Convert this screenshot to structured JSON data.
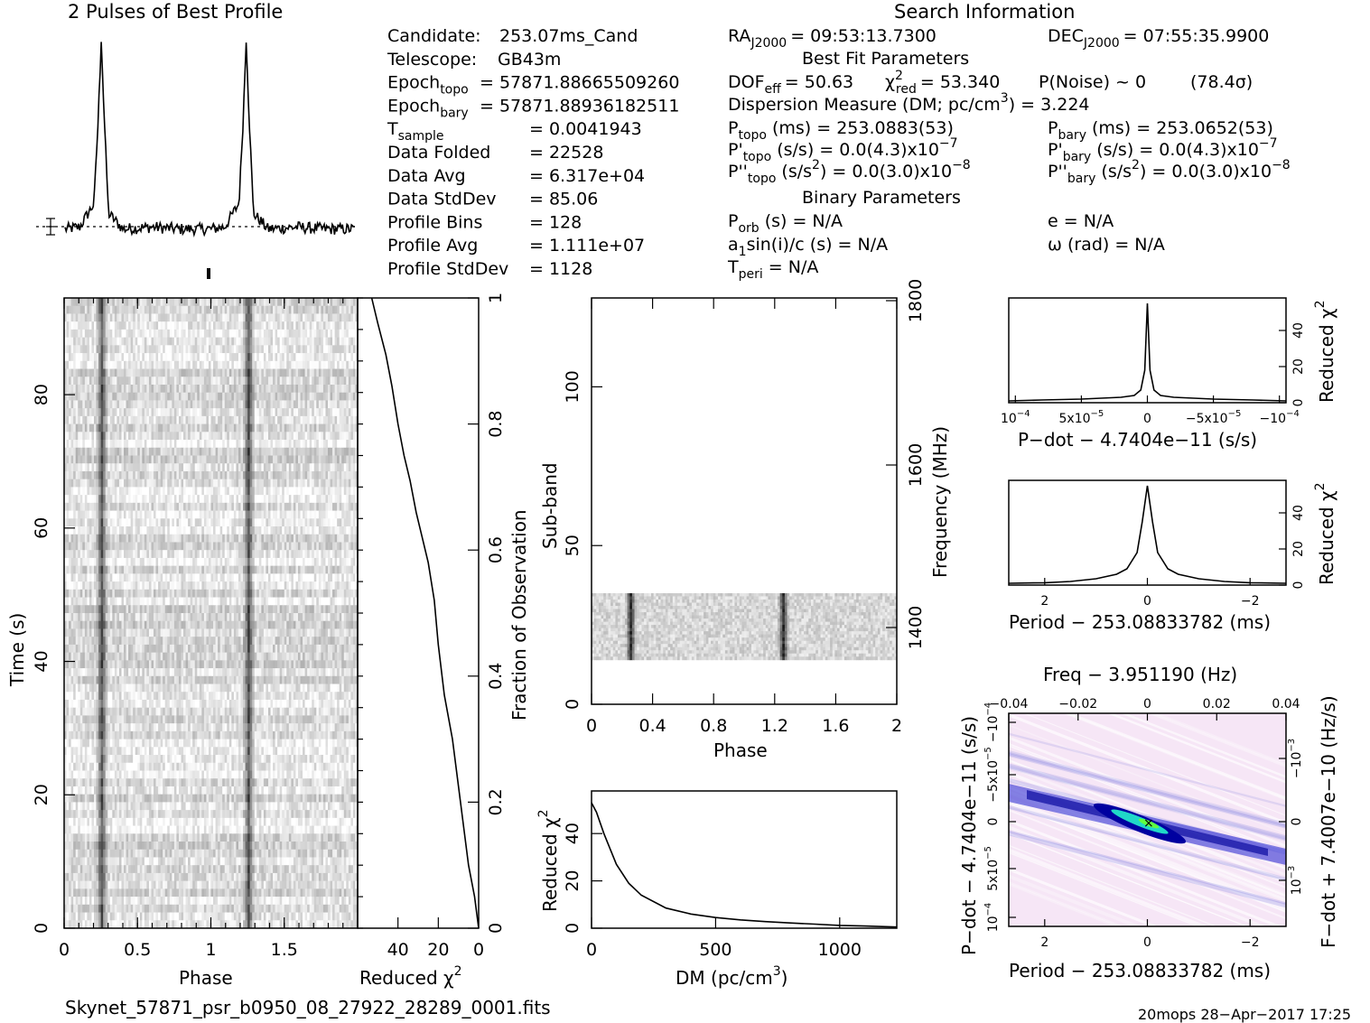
{
  "header": {
    "profile_title": "2 Pulses of Best Profile",
    "search_title": "Search Information"
  },
  "info": {
    "left": [
      {
        "label": "Candidate:",
        "value": "253.07ms_Cand"
      },
      {
        "label": "Telescope:",
        "value": "GB43m"
      },
      {
        "label": "Epoch",
        "sub": "topo",
        "value": "= 57871.88665509260"
      },
      {
        "label": "Epoch",
        "sub": "bary",
        "value": "= 57871.88936182511"
      },
      {
        "label": "T",
        "sub": "sample",
        "value": "= 0.0041943"
      },
      {
        "label": "Data Folded",
        "value": "= 22528"
      },
      {
        "label": "Data Avg",
        "value": "= 6.317e+04"
      },
      {
        "label": "Data StdDev",
        "value": "= 85.06"
      },
      {
        "label": "Profile Bins",
        "value": "= 128"
      },
      {
        "label": "Profile Avg",
        "value": "= 1.111e+07"
      },
      {
        "label": "Profile StdDev",
        "value": "= 1128"
      }
    ],
    "ra": "RA",
    "ra_sub": "J2000",
    "ra_value": "= 09:53:13.7300",
    "dec": "DEC",
    "dec_sub": "J2000",
    "dec_value": "= 07:55:35.9900",
    "best_fit_title": "Best Fit Parameters",
    "dof": "DOF",
    "dof_sub": "eff",
    "dof_value": "= 50.63",
    "chi": "χ",
    "chi_sup": "2",
    "chi_sub": "red",
    "chi_value": "= 53.340",
    "pnoise": "P(Noise) ~ 0",
    "sigma": "(78.4σ)",
    "dm_line": "Dispersion Measure (DM; pc/cm",
    "dm_sup": "3",
    "dm_value": ") = 3.224",
    "ptopo": "P",
    "ptopo_sub": "topo",
    "ptopo_value": "(ms) =  253.0883(53)",
    "pbary": "P",
    "pbary_sub": "bary",
    "pbary_value": "(ms) =  253.0652(53)",
    "pdtopo": "P'",
    "pdtopo_sub": "topo",
    "pdtopo_value": "(s/s) = 0.0(4.3)x10",
    "pdtopo_exp": "−7",
    "pdbary": "P'",
    "pdbary_sub": "bary",
    "pdbary_value": "(s/s) = 0.0(4.3)x10",
    "pdbary_exp": "−7",
    "pddtopo": "P''",
    "pddtopo_sub": "topo",
    "pddtopo_value": "(s/s",
    "pddtopo_sup2": "2",
    "pddtopo_value2": ") = 0.0(3.0)x10",
    "pddtopo_exp": "−8",
    "pddbary": "P''",
    "pddbary_sub": "bary",
    "pddbary_value": "(s/s",
    "pddbary_sup2": "2",
    "pddbary_value2": ") = 0.0(3.0)x10",
    "pddbary_exp": "−8",
    "binary_title": "Binary Parameters",
    "porb": "P",
    "porb_sub": "orb",
    "porb_value": "(s) = N/A",
    "ecc": "e = N/A",
    "a1": "a",
    "a1_sub": "1",
    "a1_value": "sin(i)/c (s) = N/A",
    "omega": "ω (rad) = N/A",
    "tperi": "T",
    "tperi_sub": "peri",
    "tperi_value": "= N/A"
  },
  "footer": {
    "filename": "Skynet_57871_psr_b0950_08_27922_28289_0001.fits",
    "stamp": "20mops 28−Apr−2017 17:25"
  },
  "chart_data": [
    {
      "id": "profile",
      "type": "line",
      "title": "2 Pulses of Best Profile",
      "x": [
        0,
        0.1,
        0.2,
        0.23,
        0.25,
        0.27,
        0.3,
        0.4,
        0.6,
        0.8,
        1.0,
        1.1,
        1.2,
        1.23,
        1.25,
        1.27,
        1.3,
        1.4,
        1.6,
        1.8,
        2.0
      ],
      "y": [
        0.02,
        0.03,
        0.15,
        0.6,
        1.0,
        0.6,
        0.1,
        0.02,
        0.03,
        0.02,
        0.02,
        0.03,
        0.15,
        0.6,
        1.0,
        0.6,
        0.1,
        0.02,
        0.03,
        0.02,
        0.02
      ],
      "xlim": [
        0,
        2
      ]
    },
    {
      "id": "time-phase",
      "type": "heatmap",
      "xlabel": "Phase",
      "ylabel": "Time (s)",
      "xticks": [
        "0",
        "0.5",
        "1",
        "1.5"
      ],
      "yticks": [
        "0",
        "20",
        "40",
        "60",
        "80"
      ],
      "xlim": [
        0,
        2
      ],
      "ylim": [
        0,
        94.5
      ],
      "pulse_phases": [
        0.25,
        1.25
      ]
    },
    {
      "id": "time-chi",
      "type": "line",
      "xlabel": "Reduced χ",
      "xlabel_sup": "2",
      "ylabel": "Fraction of Observation",
      "xticks": [
        "40",
        "20",
        "0"
      ],
      "yticks": [
        "0",
        "0.2",
        "0.4",
        "0.6",
        "0.8",
        "1"
      ],
      "x": [
        0,
        2,
        5,
        9,
        13,
        17,
        20,
        22,
        25,
        28,
        31,
        34,
        37,
        40,
        43,
        46,
        50,
        53
      ],
      "y": [
        0,
        0.05,
        0.1,
        0.2,
        0.3,
        0.37,
        0.45,
        0.52,
        0.58,
        0.62,
        0.66,
        0.71,
        0.75,
        0.8,
        0.86,
        0.91,
        0.96,
        1.0
      ],
      "xlim": [
        60,
        0
      ],
      "ylim": [
        0,
        1
      ]
    },
    {
      "id": "subband-phase",
      "type": "heatmap",
      "xlabel": "Phase",
      "ylabel": "Sub-band",
      "y2label": "Frequency (MHz)",
      "xticks": [
        "0",
        "0.4",
        "0.8",
        "1.2",
        "1.6",
        "2"
      ],
      "yticks": [
        "0",
        "50",
        "100"
      ],
      "y2ticks": [
        "1400",
        "1600",
        "1800"
      ],
      "xlim": [
        0,
        2
      ],
      "ylim": [
        0,
        128
      ],
      "data_band": [
        14,
        35
      ],
      "pulse_phases": [
        0.25,
        1.25
      ]
    },
    {
      "id": "dm-chi",
      "type": "line",
      "xlabel": "DM (pc/cm",
      "xlabel_sup": "3",
      "xlabel_end": ")",
      "ylabel": "Reduced χ",
      "ylabel_sup": "2",
      "xticks": [
        "0",
        "500",
        "1000"
      ],
      "yticks": [
        "0",
        "20",
        "40"
      ],
      "x": [
        0,
        20,
        50,
        100,
        150,
        200,
        300,
        400,
        500,
        600,
        700,
        800,
        900,
        1000,
        1100,
        1200,
        1230
      ],
      "y": [
        53,
        49,
        40,
        27,
        19,
        14,
        8.5,
        6,
        4.5,
        3.5,
        2.8,
        2.2,
        1.7,
        1.2,
        0.9,
        0.6,
        0.5
      ],
      "xlim": [
        0,
        1230
      ],
      "ylim": [
        0,
        58
      ]
    },
    {
      "id": "pdot-chi",
      "type": "line",
      "xlabel": "P−dot − 4.7404e−11 (s/s)",
      "ylabel": "Reduced χ",
      "ylabel_sup": "2",
      "xticks": [
        "10",
        "5x10",
        "0",
        "−5x10",
        "−10"
      ],
      "xtick_exps": [
        "−4",
        "−5",
        "",
        "−5",
        "−4"
      ],
      "yticks": [
        "0",
        "20",
        "40"
      ],
      "x": [
        0.000105,
        8e-05,
        5e-05,
        2e-05,
        1e-05,
        5e-06,
        2e-06,
        0,
        -2e-06,
        -5e-06,
        -1e-05,
        -2e-05,
        -5e-05,
        -8e-05,
        -0.000105
      ],
      "y": [
        1,
        1.5,
        2,
        3,
        4,
        7,
        18,
        55,
        18,
        7,
        4,
        3,
        2,
        1.5,
        1
      ],
      "xlim": [
        0.000105,
        -0.000105
      ],
      "ylim": [
        0,
        58
      ]
    },
    {
      "id": "period-chi",
      "type": "line",
      "xlabel": "Period − 253.08833782 (ms)",
      "ylabel": "Reduced χ",
      "ylabel_sup": "2",
      "xticks": [
        "2",
        "0",
        "−2"
      ],
      "yticks": [
        "0",
        "20",
        "40"
      ],
      "x": [
        2.7,
        2,
        1.5,
        1,
        0.6,
        0.4,
        0.2,
        0.1,
        0,
        -0.1,
        -0.2,
        -0.4,
        -0.6,
        -1,
        -1.5,
        -2,
        -2.7
      ],
      "y": [
        1,
        1.3,
        2,
        3.5,
        6,
        9,
        18,
        35,
        55,
        35,
        18,
        9,
        6,
        3.5,
        2,
        1.3,
        1
      ],
      "xlim": [
        2.7,
        -2.7
      ],
      "ylim": [
        0,
        58
      ]
    },
    {
      "id": "period-pdot-grid",
      "type": "heatmap",
      "title": "Freq − 3.951190 (Hz)",
      "xlabel": "Period − 253.08833782 (ms)",
      "ylabel": "P−dot − 4.7404e−11 (s/s)",
      "y2label": "F−dot + 7.4007e−10 (Hz/s)",
      "xticks": [
        "2",
        "0",
        "−2"
      ],
      "x2ticks": [
        "−0.04",
        "−0.02",
        "0",
        "0.02",
        "0.04"
      ],
      "yticks": [
        "10",
        "5x10",
        "0",
        "−5x10",
        "−10"
      ],
      "ytick_exps": [
        "−4",
        "−5",
        "",
        "−5",
        "−4"
      ],
      "y2ticks": [
        "−10",
        "0",
        "10"
      ],
      "y2tick_exps": [
        "−3",
        "",
        "−3"
      ]
    }
  ]
}
